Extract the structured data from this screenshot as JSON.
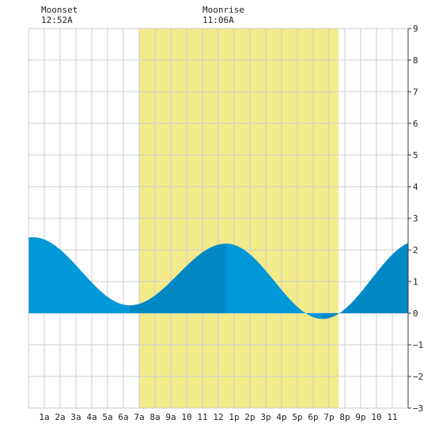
{
  "header": {
    "moonset_title": "Moonset",
    "moonset_time": "12:52A",
    "moonrise_title": "Moonrise",
    "moonrise_time": "11:06A"
  },
  "chart_data": {
    "type": "area",
    "title": "",
    "xlabel": "",
    "ylabel": "",
    "xlim": [
      0,
      24
    ],
    "ylim": [
      -3,
      9
    ],
    "y_ticks": [
      -3,
      -2,
      -1,
      0,
      1,
      2,
      3,
      4,
      5,
      6,
      7,
      8,
      9
    ],
    "y_tick_labels": [
      "−3",
      "−2",
      "−1",
      "0",
      "1",
      "2",
      "3",
      "4",
      "5",
      "6",
      "7",
      "8",
      "9"
    ],
    "x_ticks": [
      1,
      2,
      3,
      4,
      5,
      6,
      7,
      8,
      9,
      10,
      11,
      12,
      13,
      14,
      15,
      16,
      17,
      18,
      19,
      20,
      21,
      22,
      23
    ],
    "x_tick_labels": [
      "1a",
      "2a",
      "3a",
      "4a",
      "5a",
      "6a",
      "7a",
      "8a",
      "9a",
      "10",
      "11",
      "12",
      "1p",
      "2p",
      "3p",
      "4p",
      "5p",
      "6p",
      "7p",
      "8p",
      "9p",
      "10",
      "11"
    ],
    "grid": true,
    "daylight": {
      "start": 7.0,
      "end": 19.6,
      "color": "#f3ea8a"
    },
    "moonset_hour": 0.87,
    "moonrise_hour": 11.1,
    "tide_extremes": [
      {
        "hour": 0.3,
        "height": 2.4
      },
      {
        "hour": 6.4,
        "height": 0.25
      },
      {
        "hour": 12.5,
        "height": 2.2
      },
      {
        "hour": 18.6,
        "height": -0.18
      },
      {
        "hour": 24.7,
        "height": 2.3
      }
    ],
    "series": [
      {
        "values": [
          [
            0.0,
            2.39
          ],
          [
            1.0,
            2.32
          ],
          [
            2.0,
            1.96
          ],
          [
            3.0,
            1.43
          ],
          [
            4.0,
            0.88
          ],
          [
            5.0,
            0.45
          ],
          [
            6.0,
            0.26
          ],
          [
            7.0,
            0.32
          ],
          [
            8.0,
            0.69
          ],
          [
            9.0,
            1.2
          ],
          [
            10.0,
            1.7
          ],
          [
            11.0,
            2.04
          ],
          [
            12.0,
            2.19
          ],
          [
            13.0,
            2.15
          ],
          [
            14.0,
            1.83
          ],
          [
            15.0,
            1.32
          ],
          [
            16.0,
            0.74
          ],
          [
            17.0,
            0.2
          ],
          [
            18.0,
            -0.11
          ],
          [
            19.0,
            -0.15
          ],
          [
            20.0,
            0.11
          ],
          [
            21.0,
            0.59
          ],
          [
            22.0,
            1.16
          ],
          [
            23.0,
            1.68
          ],
          [
            24.0,
            2.05
          ]
        ]
      }
    ],
    "colors": {
      "rising": "#0088c4",
      "falling": "#0098d8",
      "grid": "#cccccc",
      "axis": "#333333",
      "daylight": "#f3ea8a"
    }
  }
}
